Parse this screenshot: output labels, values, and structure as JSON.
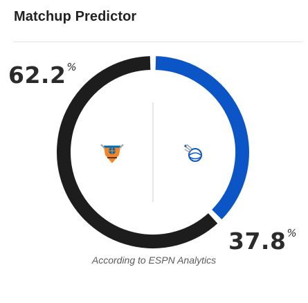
{
  "header": {
    "title": "Matchup Predictor"
  },
  "predictor": {
    "team_a": {
      "logo_icon": "knicks-logo-icon",
      "win_probability_value": 62.2,
      "pct_number": "62.2",
      "pct_symbol": "%",
      "ring_color": "#1d1d1d"
    },
    "team_b": {
      "logo_icon": "magic-logo-icon",
      "win_probability_value": 37.8,
      "pct_number": "37.8",
      "pct_symbol": "%",
      "ring_color": "#0b55c6"
    }
  },
  "footer": {
    "source": "According to ESPN Analytics"
  }
}
